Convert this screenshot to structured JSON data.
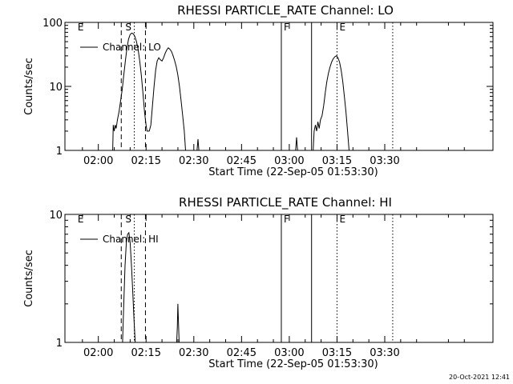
{
  "chart_data": [
    {
      "type": "line",
      "title": "RHESSI PARTICLE_RATE Channel: LO",
      "xlabel": "Start Time (22-Sep-05 01:53:30)",
      "ylabel": "Counts/sec",
      "yscale": "log",
      "ylim": [
        1,
        100
      ],
      "xlim_min": [
        -10,
        124
      ],
      "x_units": "minutes after 02:00",
      "xticks": [
        {
          "t": 0,
          "label": "02:00"
        },
        {
          "t": 15,
          "label": "02:15"
        },
        {
          "t": 30,
          "label": "02:30"
        },
        {
          "t": 45,
          "label": "02:45"
        },
        {
          "t": 60,
          "label": "03:00"
        },
        {
          "t": 75,
          "label": "03:15"
        },
        {
          "t": 90,
          "label": "03:30"
        }
      ],
      "yticks": [
        {
          "v": 1,
          "label": "1"
        },
        {
          "v": 10,
          "label": "10"
        },
        {
          "v": 100,
          "label": "100"
        }
      ],
      "legend": {
        "label": "Channel: LO",
        "position": "top-left"
      },
      "markers": [
        {
          "t": -6.5,
          "style": "none",
          "label": "E"
        },
        {
          "t": 7.2,
          "style": "dashed",
          "label": ""
        },
        {
          "t": 8.5,
          "style": "none",
          "label": "S"
        },
        {
          "t": 11.3,
          "style": "dotted",
          "label": ""
        },
        {
          "t": 14.8,
          "style": "dashed",
          "label": ""
        },
        {
          "t": 57.5,
          "style": "solid",
          "label": "F"
        },
        {
          "t": 67.0,
          "style": "solid",
          "label": ""
        },
        {
          "t": 75.0,
          "style": "dotted",
          "label": "E"
        },
        {
          "t": 92.5,
          "style": "dotted",
          "label": ""
        }
      ],
      "series": [
        {
          "name": "Channel: LO",
          "points": [
            [
              4.5,
              1
            ],
            [
              4.7,
              2.5
            ],
            [
              5.0,
              2
            ],
            [
              5.3,
              2.5
            ],
            [
              5.6,
              2.2
            ],
            [
              6.0,
              3
            ],
            [
              6.5,
              4
            ],
            [
              7.0,
              6
            ],
            [
              7.5,
              9
            ],
            [
              8.0,
              15
            ],
            [
              8.5,
              25
            ],
            [
              9.0,
              40
            ],
            [
              9.5,
              55
            ],
            [
              10.0,
              65
            ],
            [
              10.5,
              68
            ],
            [
              11.0,
              66
            ],
            [
              11.5,
              60
            ],
            [
              12.0,
              50
            ],
            [
              12.5,
              38
            ],
            [
              13.0,
              25
            ],
            [
              13.5,
              15
            ],
            [
              14.0,
              8
            ],
            [
              14.5,
              4
            ],
            [
              15.0,
              2.5
            ],
            [
              15.3,
              2
            ],
            [
              16.0,
              2
            ],
            [
              16.5,
              2.5
            ],
            [
              17.0,
              5
            ],
            [
              17.5,
              10
            ],
            [
              18.0,
              18
            ],
            [
              18.5,
              25
            ],
            [
              19.0,
              28
            ],
            [
              19.5,
              26
            ],
            [
              20.0,
              25
            ],
            [
              20.5,
              28
            ],
            [
              21.0,
              33
            ],
            [
              21.5,
              37
            ],
            [
              22.0,
              40
            ],
            [
              22.5,
              38
            ],
            [
              23.0,
              35
            ],
            [
              23.5,
              30
            ],
            [
              24.0,
              25
            ],
            [
              24.5,
              20
            ],
            [
              25.0,
              15
            ],
            [
              25.5,
              10
            ],
            [
              26.0,
              6
            ],
            [
              26.5,
              3.5
            ],
            [
              27.0,
              2
            ],
            [
              27.4,
              1
            ]
          ]
        },
        {
          "name": "Channel: LO (spike)",
          "points": [
            [
              31.0,
              1
            ],
            [
              31.3,
              1.5
            ],
            [
              31.6,
              1
            ]
          ]
        },
        {
          "name": "Channel: LO (spike)",
          "points": [
            [
              62.0,
              1
            ],
            [
              62.3,
              1.6
            ],
            [
              62.6,
              1
            ]
          ]
        },
        {
          "name": "Channel: LO",
          "points": [
            [
              67.5,
              1
            ],
            [
              67.8,
              2
            ],
            [
              68.2,
              2.5
            ],
            [
              68.6,
              2
            ],
            [
              69.0,
              2.8
            ],
            [
              69.4,
              2.2
            ],
            [
              69.8,
              3
            ],
            [
              70.3,
              3.5
            ],
            [
              70.8,
              5
            ],
            [
              71.3,
              8
            ],
            [
              71.8,
              12
            ],
            [
              72.3,
              16
            ],
            [
              72.8,
              20
            ],
            [
              73.3,
              24
            ],
            [
              73.8,
              27
            ],
            [
              74.3,
              29
            ],
            [
              74.8,
              30
            ],
            [
              75.3,
              28
            ],
            [
              75.8,
              24
            ],
            [
              76.3,
              18
            ],
            [
              76.8,
              12
            ],
            [
              77.3,
              7
            ],
            [
              77.8,
              4
            ],
            [
              78.3,
              2
            ],
            [
              78.8,
              1
            ]
          ]
        }
      ]
    },
    {
      "type": "line",
      "title": "RHESSI PARTICLE_RATE Channel: HI",
      "xlabel": "Start Time (22-Sep-05 01:53:30)",
      "ylabel": "Counts/sec",
      "yscale": "log",
      "ylim": [
        1,
        10
      ],
      "xlim_min": [
        -10,
        124
      ],
      "x_units": "minutes after 02:00",
      "xticks": [
        {
          "t": 0,
          "label": "02:00"
        },
        {
          "t": 15,
          "label": "02:15"
        },
        {
          "t": 30,
          "label": "02:30"
        },
        {
          "t": 45,
          "label": "02:45"
        },
        {
          "t": 60,
          "label": "03:00"
        },
        {
          "t": 75,
          "label": "03:15"
        },
        {
          "t": 90,
          "label": "03:30"
        }
      ],
      "yticks": [
        {
          "v": 1,
          "label": "1"
        },
        {
          "v": 10,
          "label": "10"
        }
      ],
      "legend": {
        "label": "Channel: HI",
        "position": "top-left"
      },
      "markers": [
        {
          "t": -6.5,
          "style": "none",
          "label": "E"
        },
        {
          "t": 7.2,
          "style": "dashed",
          "label": ""
        },
        {
          "t": 8.5,
          "style": "none",
          "label": "S"
        },
        {
          "t": 11.3,
          "style": "dotted",
          "label": ""
        },
        {
          "t": 14.8,
          "style": "dashed",
          "label": ""
        },
        {
          "t": 57.5,
          "style": "solid",
          "label": "F"
        },
        {
          "t": 67.0,
          "style": "solid",
          "label": ""
        },
        {
          "t": 75.0,
          "style": "dotted",
          "label": "E"
        },
        {
          "t": 92.5,
          "style": "dotted",
          "label": ""
        }
      ],
      "series": [
        {
          "name": "Channel: HI",
          "points": [
            [
              7.6,
              1
            ],
            [
              8.0,
              2
            ],
            [
              8.4,
              4
            ],
            [
              8.8,
              6
            ],
            [
              9.2,
              7
            ],
            [
              9.6,
              7.2
            ],
            [
              10.0,
              6
            ],
            [
              10.4,
              4
            ],
            [
              10.8,
              2.5
            ],
            [
              11.2,
              1.5
            ],
            [
              11.6,
              1
            ]
          ]
        },
        {
          "name": "Channel: HI (spike)",
          "points": [
            [
              24.6,
              1
            ],
            [
              24.8,
              1.3
            ],
            [
              25.0,
              2
            ],
            [
              25.2,
              1.4
            ],
            [
              25.4,
              1
            ]
          ]
        }
      ]
    }
  ],
  "timestamp": "20-Oct-2021 12:41"
}
